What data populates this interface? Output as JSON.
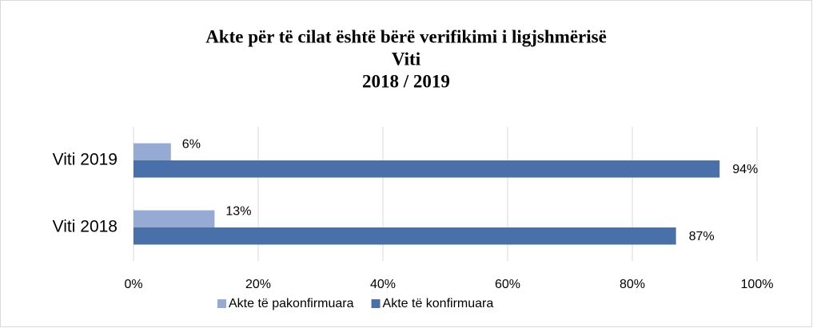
{
  "chart_data": {
    "type": "bar",
    "orientation": "horizontal",
    "title": [
      "Akte për të cilat është bërë verifikimi i ligjshmërisë",
      "Viti",
      "2018 / 2019"
    ],
    "categories": [
      "Viti 2019",
      "Viti 2018"
    ],
    "series": [
      {
        "name": "Akte të pakonfirmuara",
        "color": "#95abd4",
        "values": [
          6,
          13
        ],
        "value_labels": [
          "6%",
          "13%"
        ]
      },
      {
        "name": "Akte të konfirmuara",
        "color": "#4a70aa",
        "values": [
          94,
          87
        ],
        "value_labels": [
          "94%",
          "87%"
        ]
      }
    ],
    "xlim": [
      0,
      100
    ],
    "xticks": [
      {
        "value": 0,
        "label": "0%"
      },
      {
        "value": 20,
        "label": "20%"
      },
      {
        "value": 40,
        "label": "40%"
      },
      {
        "value": 60,
        "label": "60%"
      },
      {
        "value": 80,
        "label": "80%"
      },
      {
        "value": 100,
        "label": "100%"
      }
    ],
    "grid": true,
    "legend": "bottom"
  }
}
